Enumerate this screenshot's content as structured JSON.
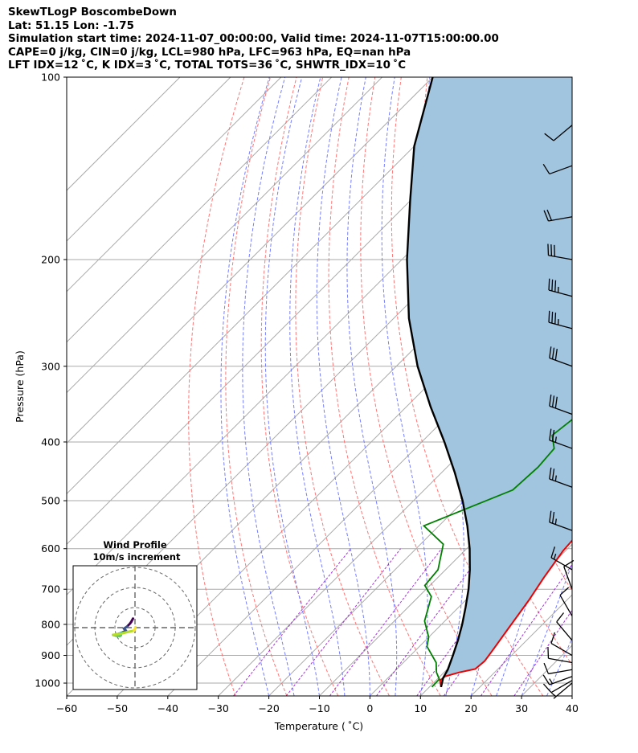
{
  "header": {
    "line1": "SkewTLogP BoscombeDown",
    "line2": "Lat: 51.15   Lon: -1.75",
    "line3": "Simulation start time: 2024-11-07_00:00:00, Valid time: 2024-11-07T15:00:00.00",
    "line4": "CAPE=0 j/kg, CIN=0 j/kg, LCL=980 hPa, LFC=963 hPa, EQ=nan hPa",
    "line5": "LFT IDX=12 ˚C, K IDX=3 ˚C, TOTAL TOTS=36 ˚C, SHWTR_IDX=10 ˚C"
  },
  "colors": {
    "temperature": "#ee0000",
    "dewpoint": "#008000",
    "parcel": "#000000",
    "shade": "#a1c4df",
    "dry_adiabat": "#ff6666",
    "moist_adiabat": "#6670ff",
    "mixing_ratio": "#9400d3",
    "isotherm": "#aaaaaa"
  },
  "chart_data": [
    {
      "type": "line",
      "subtype": "skew-T log-p",
      "xlabel": "Temperature ( ˚C)",
      "ylabel": "Pressure (hPa)",
      "xlim": [
        -60,
        40
      ],
      "ylim": [
        1050,
        100
      ],
      "y_scale": "log",
      "x_ticks": [
        "−60",
        "−50",
        "−40",
        "−30",
        "−20",
        "−10",
        "0",
        "10",
        "20",
        "30",
        "40"
      ],
      "y_ticks": [
        "100",
        "200",
        "300",
        "400",
        "500",
        "600",
        "700",
        "800",
        "900",
        "1000"
      ],
      "grid": true,
      "series": [
        {
          "role": "temperature",
          "points": [
            [
              12.3,
              1015
            ],
            [
              10.8,
              990
            ],
            [
              11.0,
              975
            ],
            [
              13.0,
              960
            ],
            [
              15.5,
              948
            ],
            [
              15.8,
              920
            ],
            [
              15.2,
              880
            ],
            [
              14.0,
              810
            ],
            [
              12.5,
              730
            ],
            [
              11.0,
              670
            ],
            [
              9.5,
              605
            ],
            [
              9.0,
              560
            ],
            [
              8.0,
              510
            ],
            [
              6.0,
              480
            ],
            [
              2.5,
              440
            ],
            [
              -1.0,
              395
            ],
            [
              -3.5,
              355
            ],
            [
              -5.5,
              325
            ],
            [
              -7.0,
              300
            ],
            [
              -8.5,
              285
            ],
            [
              -9.5,
              270
            ],
            [
              -10.0,
              250
            ],
            [
              -10.5,
              230
            ],
            [
              -10.0,
              210
            ],
            [
              -9.5,
              190
            ],
            [
              -8.0,
              170
            ],
            [
              -5.5,
              150
            ],
            [
              -3.5,
              135
            ],
            [
              -2.0,
              120
            ],
            [
              -1.5,
              110
            ],
            [
              -1.0,
              100
            ]
          ]
        },
        {
          "role": "dewpoint",
          "points": [
            [
              10.5,
              1015
            ],
            [
              10.4,
              985
            ],
            [
              8.5,
              960
            ],
            [
              6.5,
              925
            ],
            [
              1.5,
              870
            ],
            [
              0.0,
              840
            ],
            [
              -4.0,
              790
            ],
            [
              -7.5,
              720
            ],
            [
              -11.0,
              690
            ],
            [
              -11.5,
              650
            ],
            [
              -15.5,
              590
            ],
            [
              -23.0,
              550
            ],
            [
              -12.5,
              480
            ],
            [
              -12.0,
              440
            ],
            [
              -12.5,
              410
            ],
            [
              -15.5,
              390
            ],
            [
              -14.0,
              350
            ],
            [
              -10.5,
              320
            ],
            [
              -13.0,
              295
            ],
            [
              -19.0,
              280
            ],
            [
              -25.5,
              265
            ],
            [
              -19.5,
              250
            ],
            [
              -17.0,
              225
            ],
            [
              -15.0,
              200
            ],
            [
              -13.0,
              185
            ],
            [
              -11.5,
              165
            ],
            [
              -11.0,
              150
            ],
            [
              -11.0,
              140
            ],
            [
              -8.5,
              125
            ],
            [
              -7.0,
              112
            ],
            [
              -2.0,
              100
            ]
          ]
        },
        {
          "role": "parcel",
          "points": [
            [
              12.3,
              1015
            ],
            [
              10.9,
              980
            ],
            [
              10.2,
              950
            ],
            [
              8.4,
              900
            ],
            [
              6.4,
              850
            ],
            [
              4.1,
              800
            ],
            [
              1.4,
              750
            ],
            [
              -1.6,
              700
            ],
            [
              -5.2,
              650
            ],
            [
              -9.4,
              600
            ],
            [
              -14.4,
              550
            ],
            [
              -20.3,
              500
            ],
            [
              -27.3,
              450
            ],
            [
              -35.5,
              400
            ],
            [
              -45.2,
              350
            ],
            [
              -55.8,
              300
            ],
            [
              -67.0,
              250
            ],
            [
              -79.0,
              200
            ],
            [
              -90.0,
              160
            ],
            [
              -100.0,
              130
            ],
            [
              -110.0,
              100
            ]
          ]
        }
      ]
    },
    {
      "type": "scatter",
      "subtype": "wind barbs",
      "pressure_hPa": [
        1000,
        990,
        975,
        950,
        925,
        900,
        850,
        775,
        700,
        650,
        560,
        475,
        410,
        360,
        300,
        260,
        230,
        200,
        170,
        140,
        120
      ],
      "speed_kt": [
        5,
        10,
        15,
        10,
        10,
        10,
        10,
        10,
        10,
        15,
        25,
        25,
        25,
        30,
        30,
        35,
        35,
        30,
        20,
        10,
        10
      ],
      "direction_deg": [
        230,
        240,
        250,
        260,
        280,
        300,
        320,
        330,
        340,
        300,
        290,
        290,
        290,
        290,
        290,
        285,
        285,
        280,
        260,
        250,
        230
      ]
    },
    {
      "type": "line",
      "subtype": "hodograph",
      "title": "Wind Profile",
      "subtitle": "10m/s increment",
      "rings_ms": [
        10,
        20,
        30
      ],
      "points_ms": [
        [
          -1.0,
          4.5
        ],
        [
          -1.8,
          3.0
        ],
        [
          -2.5,
          2.0
        ],
        [
          -4.0,
          0.5
        ],
        [
          -5.5,
          -0.5
        ],
        [
          -4.5,
          -1.5
        ],
        [
          -6.5,
          -2.5
        ],
        [
          -8.0,
          -3.0
        ],
        [
          -9.0,
          -3.3
        ],
        [
          -7.0,
          -3.8
        ],
        [
          -7.5,
          -4.2
        ],
        [
          -9.5,
          -4.0
        ],
        [
          -11.0,
          -3.6
        ],
        [
          -7.0,
          -3.0
        ],
        [
          -3.0,
          -2.0
        ],
        [
          -0.5,
          -1.5
        ],
        [
          0.0,
          -0.5
        ],
        [
          0.2,
          0.3
        ]
      ]
    }
  ]
}
